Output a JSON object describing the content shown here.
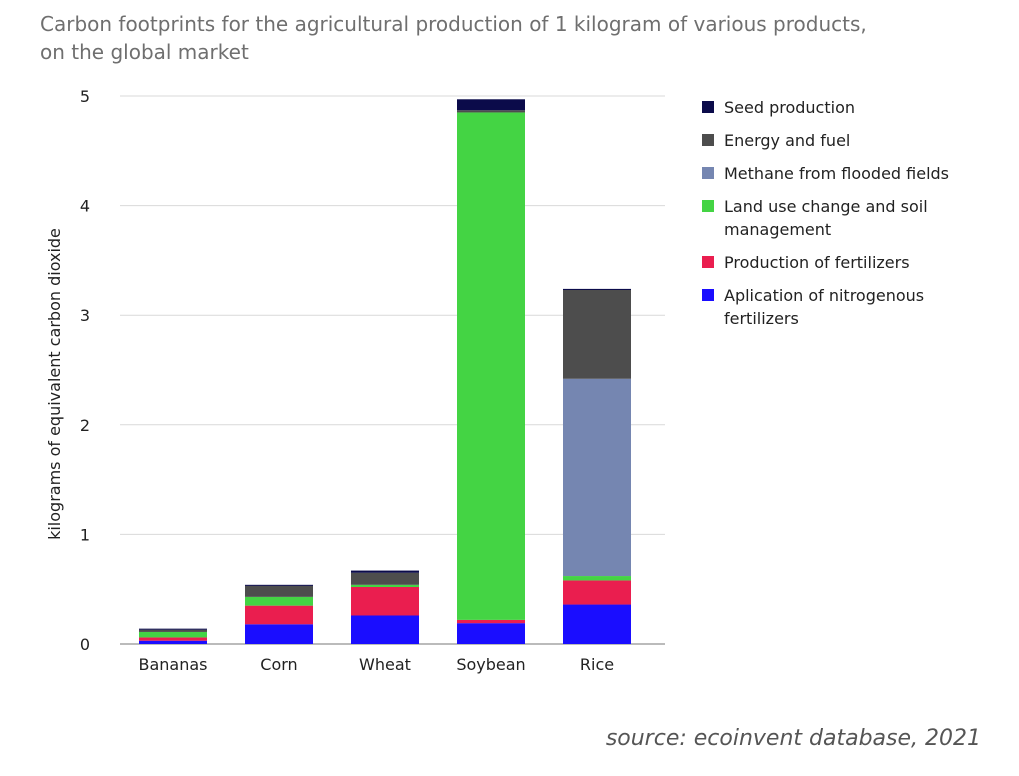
{
  "title_line1": "Carbon footprints for the agricultural production of 1 kilogram of various products,",
  "title_line2": "on the global market",
  "source": "source: ecoinvent database, 2021",
  "chart_data": {
    "type": "bar",
    "stacked": true,
    "title": "Carbon footprints for the agricultural production of 1 kilogram of various products, on the global market",
    "xlabel": "",
    "ylabel": "kilograms of equivalent carbon dioxide",
    "ylim": [
      0,
      5
    ],
    "yticks": [
      "0",
      "1",
      "2",
      "3",
      "4",
      "5"
    ],
    "grid": true,
    "legend_position": "right",
    "categories": [
      "Bananas",
      "Corn",
      "Wheat",
      "Soybean",
      "Rice"
    ],
    "series": [
      {
        "name": "Aplication of nitrogenous fertilizers",
        "color": "#1a0dff",
        "values": [
          0.03,
          0.18,
          0.26,
          0.19,
          0.36
        ]
      },
      {
        "name": "Production of fertilizers",
        "color": "#ea1e4f",
        "values": [
          0.03,
          0.17,
          0.26,
          0.03,
          0.22
        ]
      },
      {
        "name": "Land use change and soil management",
        "color": "#44d444",
        "values": [
          0.05,
          0.08,
          0.02,
          4.63,
          0.04
        ]
      },
      {
        "name": "Methane from flooded fields",
        "color": "#7586b1",
        "values": [
          0,
          0,
          0,
          0,
          1.8
        ]
      },
      {
        "name": "Energy and fuel",
        "color": "#4d4d4d",
        "values": [
          0.02,
          0.1,
          0.11,
          0.02,
          0.81
        ]
      },
      {
        "name": "Seed production",
        "color": "#0b0b4a",
        "values": [
          0.01,
          0.01,
          0.02,
          0.1,
          0.01
        ]
      }
    ],
    "legend_order": [
      "Seed production",
      "Energy and fuel",
      "Methane from flooded fields",
      "Land use change and soil management",
      "Production of fertilizers",
      "Aplication of nitrogenous fertilizers"
    ]
  }
}
